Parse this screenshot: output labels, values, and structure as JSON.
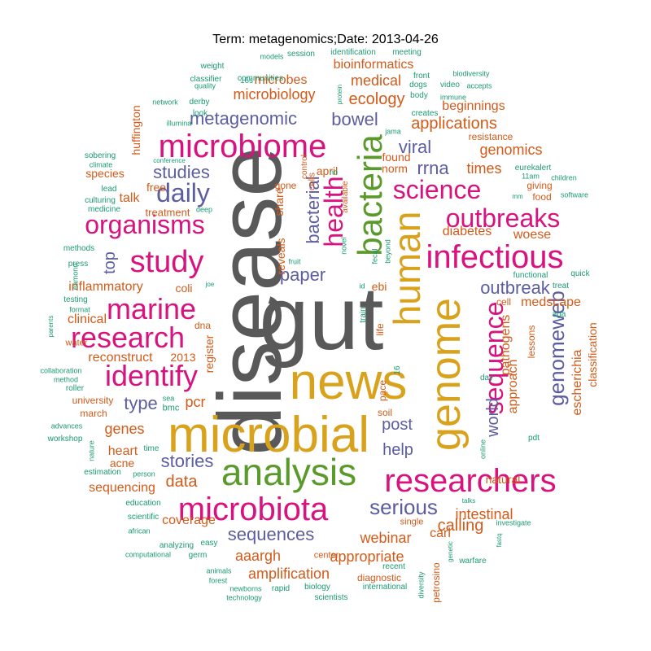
{
  "title": "Term: metagenomics;Date: 2013-04-26",
  "palette": {
    "gray": "#595959",
    "gold": "#d9a21c",
    "green": "#5a9a2a",
    "magenta": "#d8137f",
    "purple": "#5c5da0",
    "orange": "#d35a19",
    "teal": "#1b9a72"
  },
  "words": [
    {
      "text": "gut",
      "color": "gray"
    },
    {
      "text": "disease",
      "color": "gray"
    },
    {
      "text": "news",
      "color": "gold"
    },
    {
      "text": "microbial",
      "color": "gold"
    },
    {
      "text": "genome",
      "color": "gold"
    },
    {
      "text": "human",
      "color": "gold"
    },
    {
      "text": "analysis",
      "color": "green"
    },
    {
      "text": "bacteria",
      "color": "green"
    },
    {
      "text": "microbiome",
      "color": "magenta"
    },
    {
      "text": "microbiota",
      "color": "magenta"
    },
    {
      "text": "infectious",
      "color": "magenta"
    },
    {
      "text": "researchers",
      "color": "magenta"
    },
    {
      "text": "research",
      "color": "magenta"
    },
    {
      "text": "study",
      "color": "magenta"
    },
    {
      "text": "marine",
      "color": "magenta"
    },
    {
      "text": "identify",
      "color": "magenta"
    },
    {
      "text": "organisms",
      "color": "magenta"
    },
    {
      "text": "science",
      "color": "magenta"
    },
    {
      "text": "outbreaks",
      "color": "magenta"
    },
    {
      "text": "health",
      "color": "magenta"
    },
    {
      "text": "sequence",
      "color": "magenta"
    },
    {
      "text": "daily",
      "color": "purple"
    },
    {
      "text": "metagenomic",
      "color": "purple"
    },
    {
      "text": "bowel",
      "color": "purple"
    },
    {
      "text": "studies",
      "color": "purple"
    },
    {
      "text": "viral",
      "color": "purple"
    },
    {
      "text": "rrna",
      "color": "purple"
    },
    {
      "text": "paper",
      "color": "purple"
    },
    {
      "text": "bacterial",
      "color": "purple"
    },
    {
      "text": "outbreak",
      "color": "purple"
    },
    {
      "text": "genomeweb",
      "color": "purple"
    },
    {
      "text": "serious",
      "color": "purple"
    },
    {
      "text": "sequences",
      "color": "purple"
    },
    {
      "text": "stories",
      "color": "purple"
    },
    {
      "text": "type",
      "color": "purple"
    },
    {
      "text": "post",
      "color": "purple"
    },
    {
      "text": "help",
      "color": "purple"
    },
    {
      "text": "top",
      "color": "purple"
    },
    {
      "text": "world",
      "color": "purple"
    },
    {
      "text": "applications",
      "color": "orange"
    },
    {
      "text": "genomics",
      "color": "orange"
    },
    {
      "text": "ecology",
      "color": "orange"
    },
    {
      "text": "medical",
      "color": "orange"
    },
    {
      "text": "bioinformatics",
      "color": "orange"
    },
    {
      "text": "microbes",
      "color": "orange"
    },
    {
      "text": "microbiology",
      "color": "orange"
    },
    {
      "text": "beginnings",
      "color": "orange"
    },
    {
      "text": "times",
      "color": "orange"
    },
    {
      "text": "diabetes",
      "color": "orange"
    },
    {
      "text": "woese",
      "color": "orange"
    },
    {
      "text": "medscape",
      "color": "orange"
    },
    {
      "text": "inflammatory",
      "color": "orange"
    },
    {
      "text": "reconstruct",
      "color": "orange"
    },
    {
      "text": "clinical",
      "color": "orange"
    },
    {
      "text": "talk",
      "color": "orange"
    },
    {
      "text": "pcr",
      "color": "orange"
    },
    {
      "text": "genes",
      "color": "orange"
    },
    {
      "text": "data",
      "color": "orange"
    },
    {
      "text": "heart",
      "color": "orange"
    },
    {
      "text": "acne",
      "color": "orange"
    },
    {
      "text": "sequencing",
      "color": "orange"
    },
    {
      "text": "webinar",
      "color": "orange"
    },
    {
      "text": "intestinal",
      "color": "orange"
    },
    {
      "text": "calling",
      "color": "orange"
    },
    {
      "text": "appropriate",
      "color": "orange"
    },
    {
      "text": "amplification",
      "color": "orange"
    },
    {
      "text": "aaargh",
      "color": "orange"
    },
    {
      "text": "coverage",
      "color": "orange"
    },
    {
      "text": "carl",
      "color": "orange"
    },
    {
      "text": "escherichia",
      "color": "orange"
    },
    {
      "text": "pathogens",
      "color": "orange"
    },
    {
      "text": "approach",
      "color": "orange"
    },
    {
      "text": "classification",
      "color": "orange"
    },
    {
      "text": "natural",
      "color": "orange"
    },
    {
      "text": "huffington",
      "color": "orange"
    },
    {
      "text": "species",
      "color": "orange"
    },
    {
      "text": "free",
      "color": "orange"
    },
    {
      "text": "treatment",
      "color": "orange"
    },
    {
      "text": "coli",
      "color": "orange"
    },
    {
      "text": "2013",
      "color": "orange"
    },
    {
      "text": "register",
      "color": "orange"
    },
    {
      "text": "reveals",
      "color": "orange"
    },
    {
      "text": "share",
      "color": "orange"
    },
    {
      "text": "april",
      "color": "orange"
    },
    {
      "text": "norm",
      "color": "orange"
    },
    {
      "text": "found",
      "color": "orange"
    },
    {
      "text": "ebi",
      "color": "orange"
    },
    {
      "text": "cell",
      "color": "orange"
    },
    {
      "text": "lessons",
      "color": "orange"
    },
    {
      "text": "dna",
      "color": "orange"
    },
    {
      "text": "food",
      "color": "orange"
    },
    {
      "text": "giving",
      "color": "orange"
    },
    {
      "text": "pace",
      "color": "orange"
    },
    {
      "text": "soil",
      "color": "orange"
    },
    {
      "text": "university",
      "color": "orange"
    },
    {
      "text": "march",
      "color": "orange"
    },
    {
      "text": "diagnostic",
      "color": "orange"
    },
    {
      "text": "petrosino",
      "color": "orange"
    },
    {
      "text": "resistance",
      "color": "orange"
    },
    {
      "text": "life",
      "color": "orange"
    },
    {
      "text": "gone",
      "color": "orange"
    },
    {
      "text": "water",
      "color": "orange"
    },
    {
      "text": "sea",
      "color": "teal"
    },
    {
      "text": "bmc",
      "color": "teal"
    },
    {
      "text": "models",
      "color": "teal"
    },
    {
      "text": "session",
      "color": "teal"
    },
    {
      "text": "identification",
      "color": "teal"
    },
    {
      "text": "meeting",
      "color": "teal"
    },
    {
      "text": "weight",
      "color": "teal"
    },
    {
      "text": "quality",
      "color": "teal"
    },
    {
      "text": "16s",
      "color": "teal"
    },
    {
      "text": "classifier",
      "color": "teal"
    },
    {
      "text": "communities",
      "color": "teal"
    },
    {
      "text": "front",
      "color": "teal"
    },
    {
      "text": "dogs",
      "color": "teal"
    },
    {
      "text": "video",
      "color": "teal"
    },
    {
      "text": "biodiversity",
      "color": "teal"
    },
    {
      "text": "accepts",
      "color": "teal"
    },
    {
      "text": "body",
      "color": "teal"
    },
    {
      "text": "immune",
      "color": "teal"
    },
    {
      "text": "network",
      "color": "teal"
    },
    {
      "text": "derby",
      "color": "teal"
    },
    {
      "text": "look",
      "color": "teal"
    },
    {
      "text": "illumina",
      "color": "teal"
    },
    {
      "text": "creates",
      "color": "teal"
    },
    {
      "text": "jama",
      "color": "teal"
    },
    {
      "text": "protein",
      "color": "teal"
    },
    {
      "text": "sobering",
      "color": "teal"
    },
    {
      "text": "climate",
      "color": "teal"
    },
    {
      "text": "conference",
      "color": "teal"
    },
    {
      "text": "culturing",
      "color": "teal"
    },
    {
      "text": "lead",
      "color": "teal"
    },
    {
      "text": "medicine",
      "color": "teal"
    },
    {
      "text": "deep",
      "color": "teal"
    },
    {
      "text": "methods",
      "color": "teal"
    },
    {
      "text": "press",
      "color": "teal"
    },
    {
      "text": "eamonn",
      "color": "teal"
    },
    {
      "text": "testing",
      "color": "teal"
    },
    {
      "text": "joe",
      "color": "teal"
    },
    {
      "text": "format",
      "color": "teal"
    },
    {
      "text": "parents",
      "color": "teal"
    },
    {
      "text": "collaboration",
      "color": "teal"
    },
    {
      "text": "method",
      "color": "teal"
    },
    {
      "text": "roller",
      "color": "teal"
    },
    {
      "text": "advances",
      "color": "teal"
    },
    {
      "text": "workshop",
      "color": "teal"
    },
    {
      "text": "nature",
      "color": "teal"
    },
    {
      "text": "estimation",
      "color": "teal"
    },
    {
      "text": "time",
      "color": "teal"
    },
    {
      "text": "person",
      "color": "teal"
    },
    {
      "text": "education",
      "color": "teal"
    },
    {
      "text": "scientific",
      "color": "teal"
    },
    {
      "text": "african",
      "color": "teal"
    },
    {
      "text": "analyzing",
      "color": "teal"
    },
    {
      "text": "easy",
      "color": "teal"
    },
    {
      "text": "computational",
      "color": "teal"
    },
    {
      "text": "germ",
      "color": "teal"
    },
    {
      "text": "animals",
      "color": "teal"
    },
    {
      "text": "forest",
      "color": "teal"
    },
    {
      "text": "newborns",
      "color": "teal"
    },
    {
      "text": "rapid",
      "color": "teal"
    },
    {
      "text": "biology",
      "color": "teal"
    },
    {
      "text": "technology",
      "color": "teal"
    },
    {
      "text": "scientists",
      "color": "teal"
    },
    {
      "text": "recent",
      "color": "teal"
    },
    {
      "text": "international",
      "color": "teal"
    },
    {
      "text": "diversity",
      "color": "teal"
    },
    {
      "text": "warfare",
      "color": "teal"
    },
    {
      "text": "genetic",
      "color": "teal"
    },
    {
      "text": "investigate",
      "color": "teal"
    },
    {
      "text": "fastq",
      "color": "teal"
    },
    {
      "text": "talks",
      "color": "teal"
    },
    {
      "text": "single",
      "color": "orange"
    },
    {
      "text": "center",
      "color": "orange"
    },
    {
      "text": "online",
      "color": "teal"
    },
    {
      "text": "pdt",
      "color": "teal"
    },
    {
      "text": "day",
      "color": "teal"
    },
    {
      "text": "aga",
      "color": "teal"
    },
    {
      "text": "treat",
      "color": "teal"
    },
    {
      "text": "functional",
      "color": "teal"
    },
    {
      "text": "quick",
      "color": "teal"
    },
    {
      "text": "eurekalert",
      "color": "teal"
    },
    {
      "text": "11am",
      "color": "teal"
    },
    {
      "text": "children",
      "color": "teal"
    },
    {
      "text": "mm",
      "color": "teal"
    },
    {
      "text": "software",
      "color": "teal"
    },
    {
      "text": "novel",
      "color": "teal"
    },
    {
      "text": "available",
      "color": "orange"
    },
    {
      "text": "control",
      "color": "orange"
    },
    {
      "text": "cells",
      "color": "orange"
    },
    {
      "text": "no",
      "color": "teal"
    },
    {
      "text": "fruit",
      "color": "teal"
    },
    {
      "text": "fecal",
      "color": "teal"
    },
    {
      "text": "beyond",
      "color": "teal"
    },
    {
      "text": "id",
      "color": "teal"
    },
    {
      "text": "train",
      "color": "teal"
    },
    {
      "text": "16",
      "color": "teal"
    }
  ]
}
